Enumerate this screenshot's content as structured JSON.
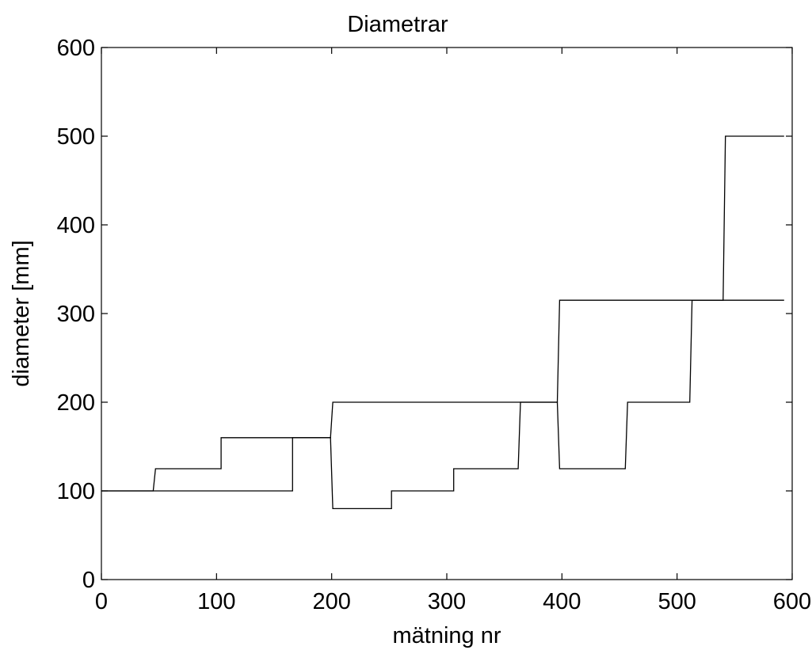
{
  "chart_data": {
    "type": "line",
    "title": "Diametrar",
    "xlabel": "mätning nr",
    "ylabel": "diameter  [mm]",
    "xlim": [
      0,
      600
    ],
    "ylim": [
      0,
      600
    ],
    "xticks": [
      0,
      100,
      200,
      300,
      400,
      500,
      600
    ],
    "yticks": [
      0,
      100,
      200,
      300,
      400,
      500,
      600
    ],
    "grid": false,
    "line_color": "#000000",
    "series": [
      {
        "points": [
          [
            0,
            100
          ],
          [
            45,
            100
          ],
          [
            47,
            125
          ],
          [
            104,
            125
          ],
          [
            104,
            160
          ],
          [
            199,
            160
          ],
          [
            201,
            200
          ],
          [
            362,
            200
          ],
          [
            364,
            200
          ],
          [
            396,
            200
          ],
          [
            398,
            315
          ],
          [
            540,
            315
          ],
          [
            542,
            500
          ],
          [
            593,
            500
          ]
        ]
      },
      {
        "points": [
          [
            0,
            100
          ],
          [
            166,
            100
          ],
          [
            166,
            160
          ],
          [
            199,
            160
          ],
          [
            201,
            80
          ],
          [
            252,
            80
          ],
          [
            252,
            100
          ],
          [
            306,
            100
          ],
          [
            306,
            125
          ],
          [
            362,
            125
          ],
          [
            364,
            200
          ],
          [
            396,
            200
          ],
          [
            398,
            125
          ],
          [
            455,
            125
          ],
          [
            457,
            200
          ],
          [
            511,
            200
          ],
          [
            513,
            315
          ],
          [
            593,
            315
          ]
        ]
      }
    ]
  }
}
